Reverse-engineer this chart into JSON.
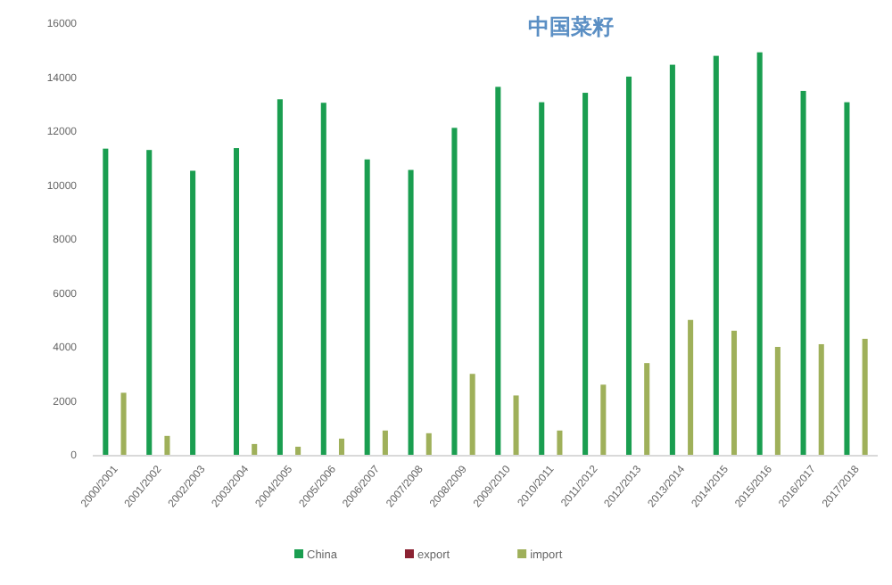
{
  "chart_data": {
    "type": "bar",
    "title": "中国菜籽",
    "categories": [
      "2000/2001",
      "2001/2002",
      "2002/2003",
      "2003/2004",
      "2004/2005",
      "2005/2006",
      "2006/2007",
      "2007/2008",
      "2008/2009",
      "2009/2010",
      "2010/2011",
      "2011/2012",
      "2012/2013",
      "2013/2014",
      "2014/2015",
      "2015/2016",
      "2016/2017",
      "2017/2018"
    ],
    "series": [
      {
        "name": "China",
        "color": "#1a9e50",
        "values": [
          11350,
          11300,
          10530,
          11370,
          13180,
          13050,
          10950,
          10560,
          12120,
          13640,
          13070,
          13420,
          14020,
          14460,
          14790,
          14920,
          13490,
          13070
        ]
      },
      {
        "name": "export",
        "color": "#8b2232",
        "values": [
          null,
          null,
          null,
          null,
          null,
          null,
          null,
          null,
          null,
          null,
          null,
          null,
          null,
          null,
          null,
          null,
          null,
          null
        ]
      },
      {
        "name": "import",
        "color": "#9fb05a",
        "values": [
          2300,
          700,
          null,
          400,
          300,
          600,
          900,
          800,
          3000,
          2200,
          900,
          2600,
          3400,
          5000,
          4600,
          4000,
          4100,
          4300
        ]
      }
    ],
    "ylim": [
      0,
      16000
    ],
    "yticks": [
      0,
      2000,
      4000,
      6000,
      8000,
      10000,
      12000,
      14000,
      16000
    ],
    "legend": "bottom",
    "grid": false
  }
}
